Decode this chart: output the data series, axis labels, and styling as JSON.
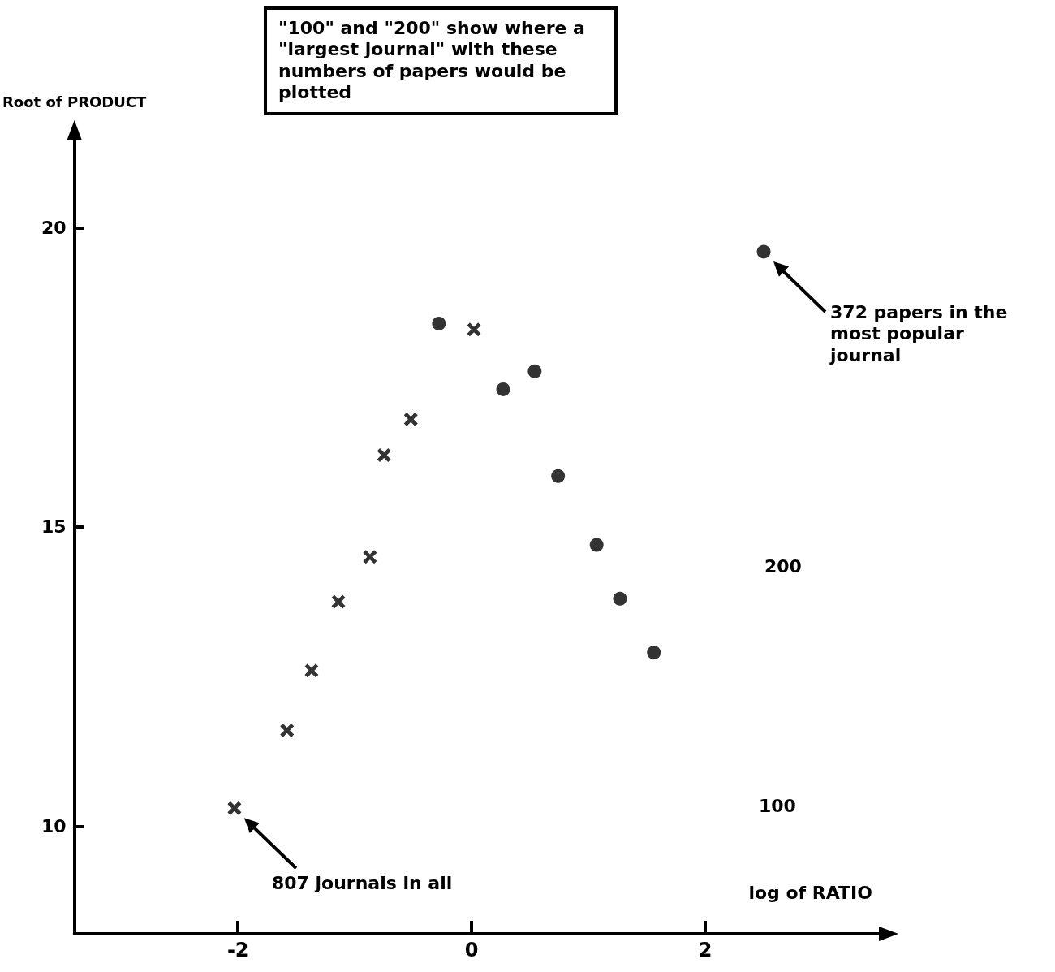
{
  "chart_data": {
    "type": "scatter",
    "xlabel": "log of RATIO",
    "ylabel": "Root of PRODUCT",
    "xlim": [
      -3.4,
      3.5
    ],
    "ylim": [
      8.2,
      21.5
    ],
    "xticks": [
      -2,
      0,
      2
    ],
    "yticks": [
      10,
      15,
      20
    ],
    "grid": false,
    "series": [
      {
        "marker": "cross",
        "color": "#000000",
        "x": [
          -2.03,
          -1.58,
          -1.37,
          -1.14,
          -0.87,
          -0.75,
          -0.52,
          0.02
        ],
        "values": [
          10.3,
          11.6,
          12.6,
          13.75,
          14.5,
          16.2,
          16.8,
          18.3
        ]
      },
      {
        "marker": "circle",
        "color": "#000000",
        "x": [
          -0.28,
          0.27,
          0.54,
          0.74,
          1.07,
          1.27,
          1.56,
          2.5
        ],
        "values": [
          18.4,
          17.3,
          17.6,
          15.85,
          14.7,
          13.8,
          12.9,
          19.6
        ]
      }
    ],
    "annotations": [
      "\"100\" and \"200\" show where a \"largest journal\" with these numbers of papers would be plotted",
      "372 papers in the most popular journal",
      "807 journals in all",
      "200",
      "100"
    ]
  }
}
